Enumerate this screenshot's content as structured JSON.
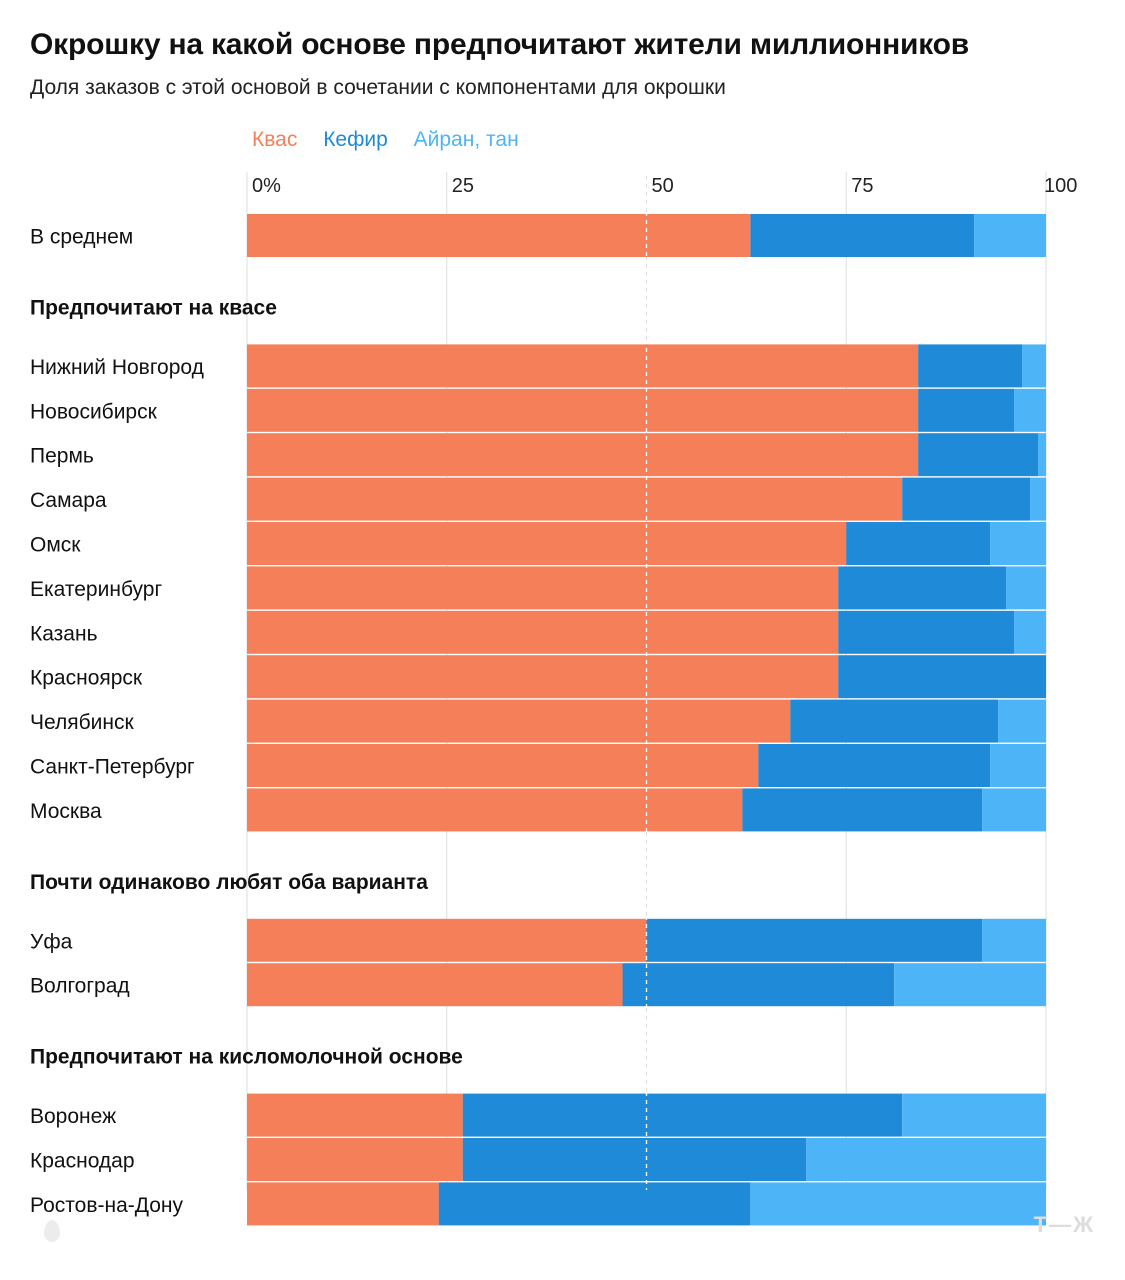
{
  "title": "Окрошку на какой основе предпочитают жители миллионников",
  "subtitle": "Доля заказов с этой основой в сочетании с компонентами для окрошки",
  "colors": {
    "kvas": "#f47f58",
    "kefir": "#1e8ad8",
    "ayran": "#4eb4f8",
    "grid": "#dddddd",
    "text": "#111111"
  },
  "legend": [
    "Квас",
    "Кефир",
    "Айран, тан"
  ],
  "watermark": "Т—Ж",
  "chart_data": {
    "type": "bar",
    "orientation": "horizontal",
    "stacked": true,
    "title": "Окрошку на какой основе предпочитают жители миллионников",
    "subtitle": "Доля заказов с этой основой в сочетании с компонентами для окрошки",
    "xlim": [
      0,
      100
    ],
    "ticks": [
      {
        "value": 0,
        "label": "0%"
      },
      {
        "value": 25,
        "label": "25"
      },
      {
        "value": 50,
        "label": "50"
      },
      {
        "value": 75,
        "label": "75"
      },
      {
        "value": 100,
        "label": "100"
      }
    ],
    "series": [
      {
        "name": "Квас",
        "color": "#f47f58"
      },
      {
        "name": "Кефир",
        "color": "#1e8ad8"
      },
      {
        "name": "Айран, тан",
        "color": "#4eb4f8"
      }
    ],
    "groups": [
      {
        "heading": "",
        "rows": [
          {
            "label": "В среднем",
            "values": [
              63,
              28,
              9
            ]
          }
        ]
      },
      {
        "heading": "Предпочитают на квасе",
        "rows": [
          {
            "label": "Нижний Новгород",
            "values": [
              84,
              13,
              3
            ]
          },
          {
            "label": "Новосибирск",
            "values": [
              84,
              12,
              4
            ]
          },
          {
            "label": "Пермь",
            "values": [
              84,
              15,
              1
            ]
          },
          {
            "label": "Самара",
            "values": [
              82,
              16,
              2
            ]
          },
          {
            "label": "Омск",
            "values": [
              75,
              18,
              7
            ]
          },
          {
            "label": "Екатеринбург",
            "values": [
              74,
              21,
              5
            ]
          },
          {
            "label": "Казань",
            "values": [
              74,
              22,
              4
            ]
          },
          {
            "label": "Красноярск",
            "values": [
              74,
              26,
              0
            ]
          },
          {
            "label": "Челябинск",
            "values": [
              68,
              26,
              6
            ]
          },
          {
            "label": "Санкт-Петербург",
            "values": [
              64,
              29,
              7
            ]
          },
          {
            "label": "Москва",
            "values": [
              62,
              30,
              8
            ]
          }
        ]
      },
      {
        "heading": "Почти одинаково любят оба варианта",
        "rows": [
          {
            "label": "Уфа",
            "values": [
              50,
              42,
              8
            ]
          },
          {
            "label": "Волгоград",
            "values": [
              47,
              34,
              19
            ]
          }
        ]
      },
      {
        "heading": "Предпочитают на кисломолочной основе",
        "rows": [
          {
            "label": "Воронеж",
            "values": [
              27,
              55,
              18
            ]
          },
          {
            "label": "Краснодар",
            "values": [
              27,
              43,
              30
            ]
          },
          {
            "label": "Ростов-на-Дону",
            "values": [
              24,
              39,
              37
            ]
          }
        ]
      }
    ]
  }
}
